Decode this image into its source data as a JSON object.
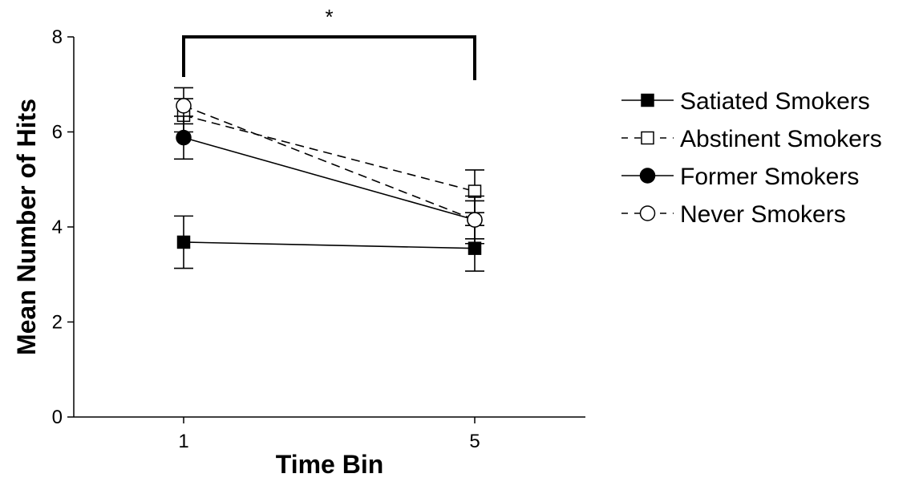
{
  "chart_data": {
    "type": "line",
    "title": "",
    "xlabel": "Time Bin",
    "ylabel": "Mean Number of Hits",
    "categories": [
      "1",
      "5"
    ],
    "ylim": [
      0,
      8
    ],
    "yticks": [
      0,
      2,
      4,
      6,
      8
    ],
    "grid": false,
    "legend_position": "right",
    "series": [
      {
        "name": "Satiated Smokers",
        "values": [
          3.68,
          3.55
        ],
        "errors": [
          0.55,
          0.48
        ],
        "marker": "square-filled",
        "line": "solid"
      },
      {
        "name": "Abstinent Smokers",
        "values": [
          6.35,
          4.75
        ],
        "errors": [
          0.35,
          0.45
        ],
        "marker": "square-open",
        "line": "dashed"
      },
      {
        "name": "Former Smokers",
        "values": [
          5.88,
          4.15
        ],
        "errors": [
          0.45,
          0.5
        ],
        "marker": "circle-filled",
        "line": "solid"
      },
      {
        "name": "Never Smokers",
        "values": [
          6.55,
          4.15
        ],
        "errors": [
          0.38,
          0.4
        ],
        "marker": "circle-open",
        "line": "dashed"
      }
    ],
    "annotations": [
      {
        "text": "*",
        "type": "significance-bracket",
        "from_category": "1",
        "to_category": "5"
      }
    ]
  },
  "colors": {
    "ink": "#000000",
    "background": "#ffffff"
  }
}
